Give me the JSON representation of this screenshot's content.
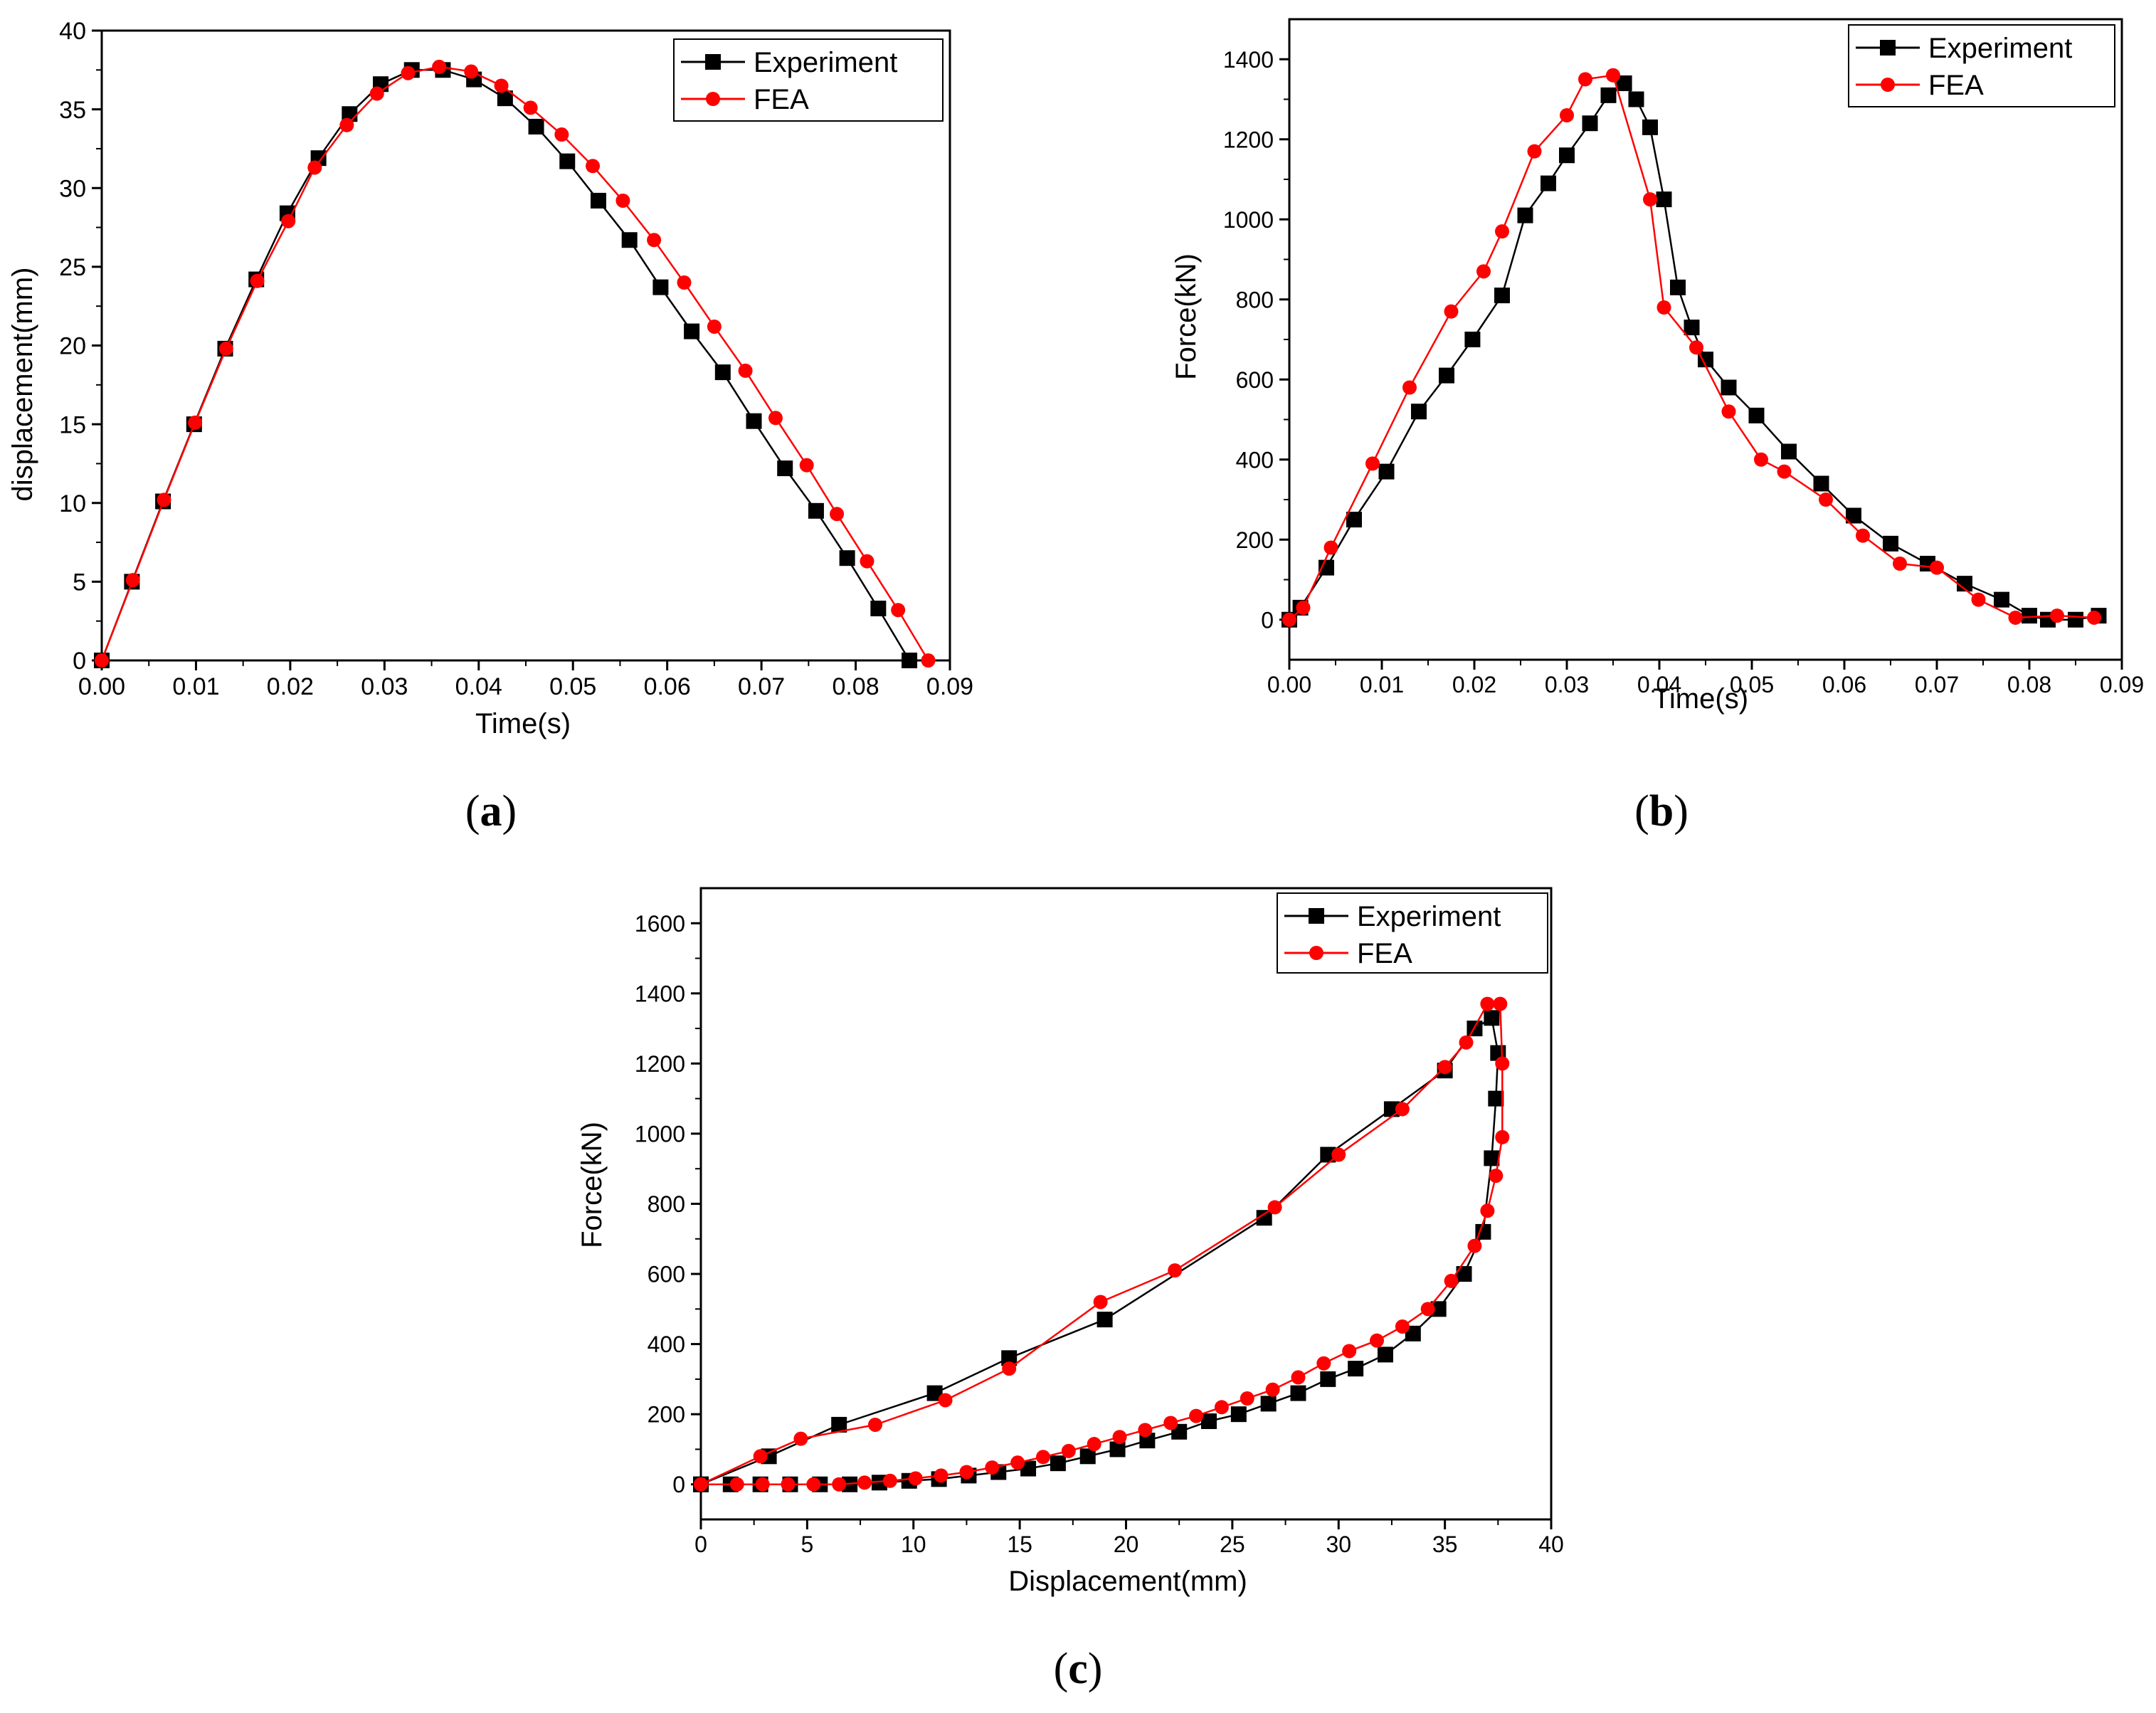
{
  "chart_data": [
    {
      "id": "a",
      "type": "line",
      "panel_label": "a",
      "title": "",
      "xlabel": "Time(s)",
      "ylabel": "displacement(mm)",
      "xlim": [
        0,
        0.09
      ],
      "ylim": [
        0,
        40
      ],
      "xticks": [
        "0.00",
        "0.01",
        "0.02",
        "0.03",
        "0.04",
        "0.05",
        "0.06",
        "0.07",
        "0.08",
        "0.09"
      ],
      "yticks": [
        "0",
        "5",
        "10",
        "15",
        "20",
        "25",
        "30",
        "35",
        "40"
      ],
      "legend_position": "top-right",
      "series": [
        {
          "name": "Experiment",
          "color": "#000000",
          "marker": "square",
          "x": [
            0,
            0.0032,
            0.0065,
            0.0098,
            0.0131,
            0.0164,
            0.0197,
            0.023,
            0.0263,
            0.0296,
            0.0329,
            0.0362,
            0.0395,
            0.0428,
            0.0461,
            0.0494,
            0.0527,
            0.056,
            0.0593,
            0.0626,
            0.0659,
            0.0692,
            0.0725,
            0.0758,
            0.0791,
            0.0824,
            0.0857
          ],
          "y": [
            0,
            5.0,
            10.1,
            15.0,
            19.8,
            24.2,
            28.4,
            31.9,
            34.7,
            36.6,
            37.5,
            37.5,
            36.9,
            35.7,
            33.9,
            31.7,
            29.2,
            26.7,
            23.7,
            20.9,
            18.3,
            15.2,
            12.2,
            9.5,
            6.5,
            3.3,
            0
          ]
        },
        {
          "name": "FEA",
          "color": "#ff0000",
          "marker": "circle",
          "x": [
            0,
            0.0033,
            0.0066,
            0.0099,
            0.0132,
            0.0165,
            0.0198,
            0.0226,
            0.026,
            0.0292,
            0.0325,
            0.0358,
            0.0392,
            0.0424,
            0.0455,
            0.0488,
            0.0521,
            0.0553,
            0.0586,
            0.0618,
            0.065,
            0.0683,
            0.0715,
            0.0748,
            0.078,
            0.0812,
            0.0845,
            0.0877
          ],
          "y": [
            0,
            5.1,
            10.2,
            15.1,
            19.8,
            24.1,
            27.9,
            31.3,
            34.0,
            36.0,
            37.3,
            37.7,
            37.4,
            36.5,
            35.1,
            33.4,
            31.4,
            29.2,
            26.7,
            24.0,
            21.2,
            18.4,
            15.4,
            12.4,
            9.3,
            6.3,
            3.2,
            0
          ]
        }
      ]
    },
    {
      "id": "b",
      "type": "line",
      "panel_label": "b",
      "title": "",
      "xlabel": "Time(s)",
      "ylabel": "Force(kN)",
      "xlim": [
        0,
        0.09
      ],
      "ylim": [
        -100,
        1500
      ],
      "xticks": [
        "0.00",
        "0.01",
        "0.02",
        "0.03",
        "0.04",
        "0.05",
        "0.06",
        "0.07",
        "0.08",
        "0.09"
      ],
      "yticks": [
        "0",
        "200",
        "400",
        "600",
        "800",
        "1000",
        "1200",
        "1400"
      ],
      "legend_position": "top-right",
      "series": [
        {
          "name": "Experiment",
          "color": "#000000",
          "marker": "square",
          "x": [
            0,
            0.0012,
            0.004,
            0.007,
            0.0105,
            0.014,
            0.017,
            0.0198,
            0.023,
            0.0255,
            0.028,
            0.03,
            0.0325,
            0.0345,
            0.0362,
            0.0375,
            0.039,
            0.0405,
            0.042,
            0.0435,
            0.045,
            0.0475,
            0.0505,
            0.054,
            0.0575,
            0.061,
            0.065,
            0.069,
            0.073,
            0.077,
            0.08,
            0.082,
            0.085,
            0.0875
          ],
          "y": [
            0,
            30,
            130,
            250,
            370,
            520,
            610,
            700,
            810,
            1010,
            1090,
            1160,
            1240,
            1310,
            1340,
            1300,
            1230,
            1050,
            830,
            730,
            650,
            580,
            510,
            420,
            340,
            260,
            190,
            140,
            90,
            50,
            10,
            0,
            0,
            10
          ]
        },
        {
          "name": "FEA",
          "color": "#ff0000",
          "marker": "circle",
          "x": [
            0,
            0.0015,
            0.0045,
            0.009,
            0.013,
            0.0175,
            0.021,
            0.023,
            0.0265,
            0.03,
            0.032,
            0.035,
            0.039,
            0.0405,
            0.044,
            0.0475,
            0.051,
            0.0535,
            0.058,
            0.062,
            0.066,
            0.07,
            0.0745,
            0.0785,
            0.083,
            0.087
          ],
          "y": [
            0,
            30,
            180,
            390,
            580,
            770,
            870,
            970,
            1170,
            1260,
            1350,
            1360,
            1050,
            780,
            680,
            520,
            400,
            370,
            300,
            210,
            140,
            130,
            50,
            5,
            10,
            5
          ]
        }
      ]
    },
    {
      "id": "c",
      "type": "line",
      "panel_label": "c",
      "title": "",
      "xlabel": "Displacement(mm)",
      "ylabel": "Force(kN)",
      "xlim": [
        0,
        40
      ],
      "ylim": [
        -100,
        1700
      ],
      "xticks": [
        "0",
        "5",
        "10",
        "15",
        "20",
        "25",
        "30",
        "35",
        "40"
      ],
      "yticks": [
        "0",
        "200",
        "400",
        "600",
        "800",
        "1000",
        "1200",
        "1400",
        "1600"
      ],
      "legend_position": "top-right",
      "series": [
        {
          "name": "Experiment",
          "color": "#000000",
          "marker": "square",
          "x": [
            0,
            3.2,
            6.5,
            11.0,
            14.5,
            19.0,
            26.5,
            29.5,
            32.5,
            35.0,
            36.4,
            37.2,
            37.5,
            37.4,
            37.2,
            36.8,
            35.9,
            34.7,
            33.5,
            32.2,
            30.8,
            29.5,
            28.1,
            26.7,
            25.3,
            23.9,
            22.5,
            21.0,
            19.6,
            18.2,
            16.8,
            15.4,
            14.0,
            12.6,
            11.2,
            9.8,
            8.4,
            7.0,
            5.6,
            4.2,
            2.8,
            1.4,
            0
          ],
          "y": [
            0,
            80,
            170,
            260,
            360,
            470,
            760,
            940,
            1070,
            1180,
            1300,
            1330,
            1230,
            1100,
            930,
            720,
            600,
            500,
            430,
            370,
            330,
            300,
            260,
            230,
            200,
            180,
            150,
            125,
            100,
            80,
            60,
            45,
            35,
            25,
            15,
            10,
            5,
            0,
            0,
            0,
            0,
            0,
            0
          ]
        },
        {
          "name": "FEA",
          "color": "#ff0000",
          "marker": "circle",
          "x": [
            0,
            2.8,
            4.7,
            8.2,
            11.5,
            14.5,
            18.8,
            22.3,
            27.0,
            30.0,
            33.0,
            35.0,
            36.0,
            37.0,
            37.6,
            37.7,
            37.7,
            37.4,
            37.0,
            36.4,
            35.3,
            34.2,
            33.0,
            31.8,
            30.5,
            29.3,
            28.1,
            26.9,
            25.7,
            24.5,
            23.3,
            22.1,
            20.9,
            19.7,
            18.5,
            17.3,
            16.1,
            14.9,
            13.7,
            12.5,
            11.3,
            10.1,
            8.9,
            7.7,
            6.5,
            5.3,
            4.1,
            2.9,
            1.7,
            0
          ],
          "y": [
            0,
            80,
            130,
            170,
            240,
            330,
            520,
            610,
            790,
            940,
            1070,
            1190,
            1260,
            1370,
            1370,
            1200,
            990,
            880,
            780,
            680,
            580,
            500,
            450,
            410,
            380,
            345,
            305,
            270,
            245,
            220,
            195,
            175,
            155,
            135,
            115,
            95,
            78,
            62,
            48,
            35,
            25,
            17,
            10,
            5,
            0,
            0,
            0,
            0,
            0,
            0
          ]
        }
      ]
    }
  ]
}
